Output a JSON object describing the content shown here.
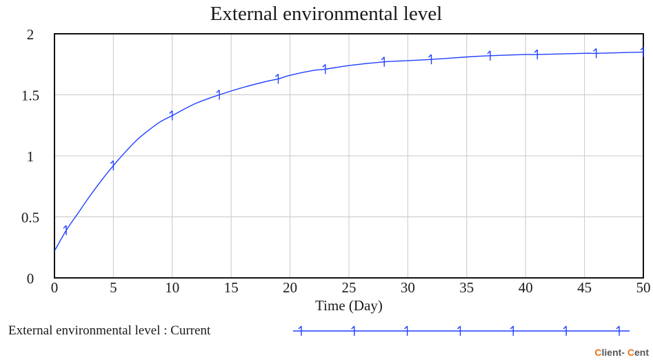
{
  "chart_data": {
    "type": "line",
    "title": "External environmental level",
    "xlabel": "Time (Day)",
    "ylabel": "",
    "xlim": [
      0,
      50
    ],
    "ylim": [
      0,
      2
    ],
    "xticks": [
      0,
      5,
      10,
      15,
      20,
      25,
      30,
      35,
      40,
      45,
      50
    ],
    "yticks": [
      0,
      0.5,
      1,
      1.5,
      2
    ],
    "ytick_labels": [
      "0",
      "0.5",
      "1",
      "1.5",
      "2"
    ],
    "grid": true,
    "series": [
      {
        "name": "External environmental level : Current",
        "color": "#1f3fff",
        "marker": "1",
        "x": [
          0,
          1,
          2,
          3,
          4,
          5,
          6,
          7,
          8,
          9,
          10,
          12,
          14,
          16,
          18,
          19,
          20,
          22,
          23,
          25,
          28,
          30,
          32,
          35,
          37,
          40,
          41,
          45,
          46,
          50
        ],
        "y": [
          0.22,
          0.39,
          0.53,
          0.67,
          0.8,
          0.92,
          1.03,
          1.13,
          1.21,
          1.28,
          1.33,
          1.43,
          1.5,
          1.56,
          1.61,
          1.63,
          1.66,
          1.7,
          1.71,
          1.74,
          1.77,
          1.78,
          1.79,
          1.81,
          1.82,
          1.83,
          1.83,
          1.84,
          1.84,
          1.85
        ],
        "marker_x": [
          1,
          5,
          10,
          14,
          19,
          23,
          28,
          32,
          37,
          41,
          46,
          50
        ]
      }
    ],
    "legend": {
      "position": "bottom-left",
      "label": "External environmental level : Current",
      "marker_count": 7
    }
  },
  "watermark": {
    "first_letter": "C",
    "text1": "lient- ",
    "second_letter": "C",
    "text2": "ent"
  }
}
